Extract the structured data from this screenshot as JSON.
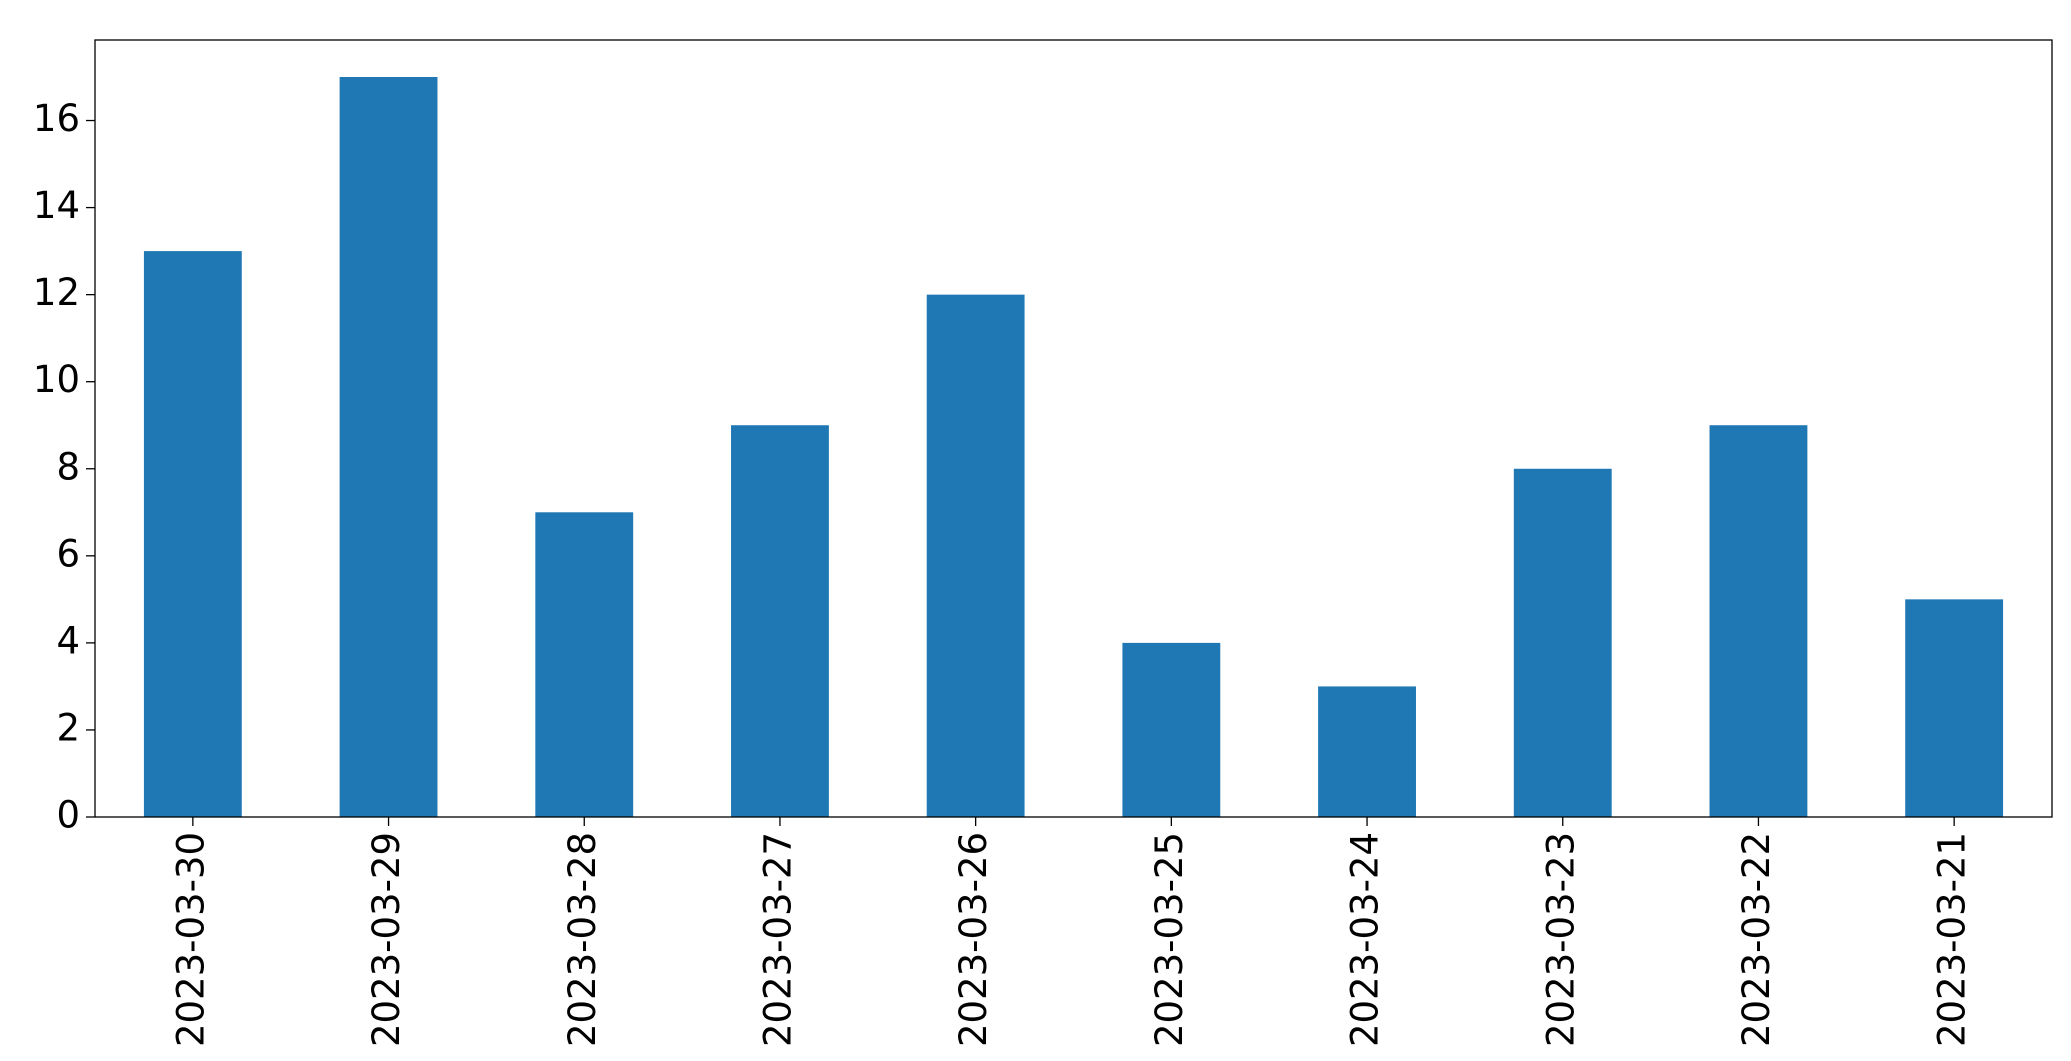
{
  "chart_data": {
    "type": "bar",
    "categories": [
      "2023-03-30",
      "2023-03-29",
      "2023-03-28",
      "2023-03-27",
      "2023-03-26",
      "2023-03-25",
      "2023-03-24",
      "2023-03-23",
      "2023-03-22",
      "2023-03-21"
    ],
    "values": [
      13,
      17,
      7,
      9,
      12,
      4,
      3,
      8,
      9,
      5
    ],
    "color": "#1f77b4",
    "ylim": [
      0,
      17.85
    ],
    "yticks": [
      0,
      2,
      4,
      6,
      8,
      10,
      12,
      14,
      16
    ],
    "grid": false
  }
}
